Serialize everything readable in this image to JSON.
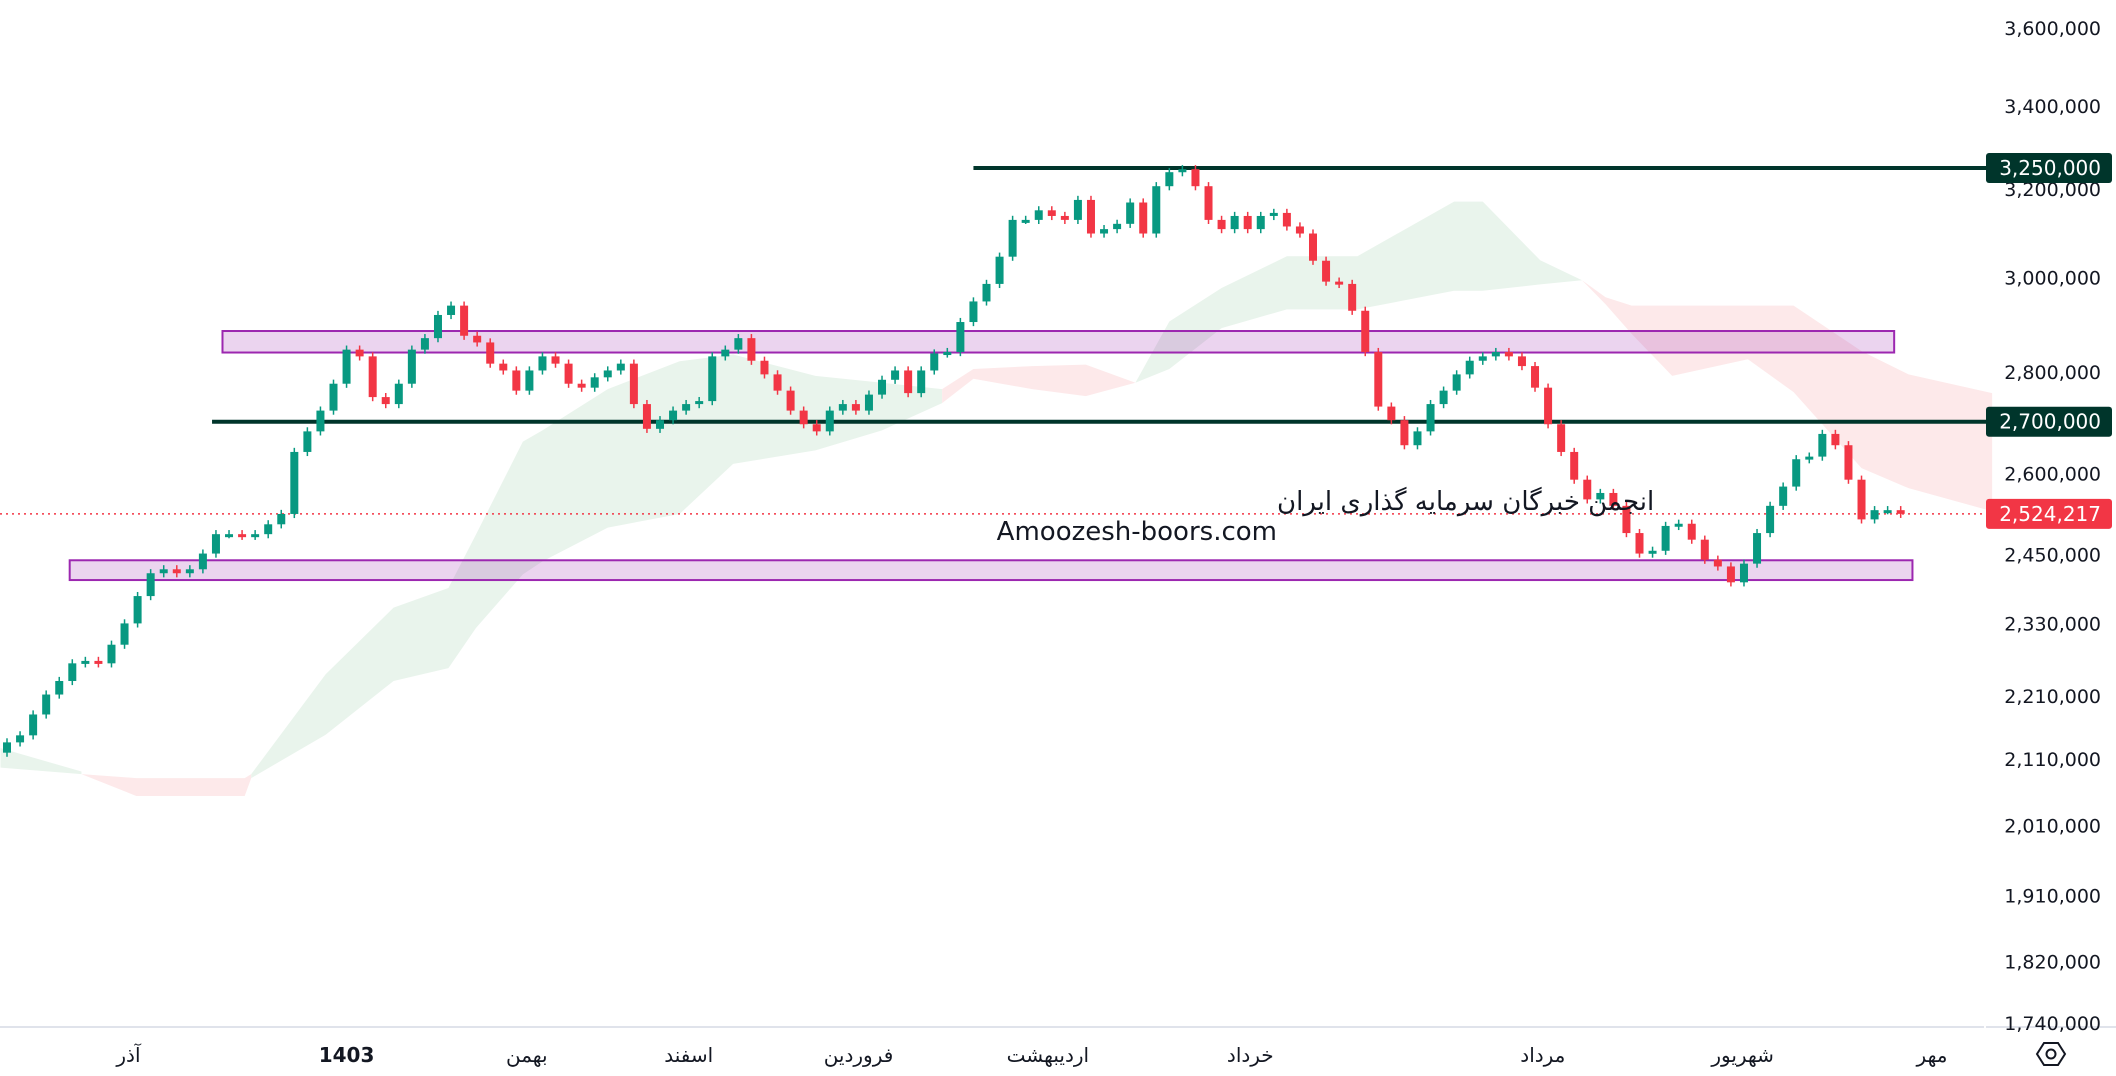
{
  "chart_data": {
    "type": "candlestick",
    "y_scale": "log",
    "ylim": [
      1740000,
      3600000
    ],
    "y_ticks": [
      "3,600,000",
      "3,400,000",
      "3,200,000",
      "3,000,000",
      "2,800,000",
      "2,600,000",
      "2,450,000",
      "2,330,000",
      "2,210,000",
      "2,110,000",
      "2,010,000",
      "1,910,000",
      "1,820,000",
      "1,740,000"
    ],
    "x_ticks": [
      {
        "label": "آذر",
        "at_bar": 9.3,
        "bold": false
      },
      {
        "label": "1403",
        "at_bar": 26,
        "bold": true
      },
      {
        "label": "بهمن",
        "at_bar": 39.8,
        "bold": false
      },
      {
        "label": "اسفند",
        "at_bar": 52.2,
        "bold": false
      },
      {
        "label": "فروردین",
        "at_bar": 65.2,
        "bold": false
      },
      {
        "label": "اردیبهشت",
        "at_bar": 79.7,
        "bold": false
      },
      {
        "label": "خرداد",
        "at_bar": 95.2,
        "bold": false
      },
      {
        "label": "مرداد",
        "at_bar": 117.6,
        "bold": false
      },
      {
        "label": "شهریور",
        "at_bar": 132.9,
        "bold": false
      },
      {
        "label": "مهر",
        "at_bar": 147.4,
        "bold": false
      }
    ],
    "first_open": 2120000,
    "closes": [
      2136000,
      2147000,
      2180000,
      2212000,
      2234000,
      2263000,
      2267000,
      2263000,
      2294000,
      2330000,
      2377000,
      2417000,
      2424000,
      2417000,
      2424000,
      2452000,
      2487000,
      2487000,
      2484000,
      2487000,
      2505000,
      2524000,
      2641000,
      2681000,
      2722000,
      2776000,
      2846000,
      2832000,
      2749000,
      2735000,
      2776000,
      2846000,
      2870000,
      2919000,
      2939000,
      2875000,
      2861000,
      2817000,
      2803000,
      2762000,
      2803000,
      2832000,
      2817000,
      2776000,
      2768000,
      2789000,
      2803000,
      2817000,
      2735000,
      2686000,
      2703000,
      2722000,
      2735000,
      2741000,
      2832000,
      2846000,
      2870000,
      2823000,
      2795000,
      2762000,
      2722000,
      2695000,
      2681000,
      2722000,
      2735000,
      2722000,
      2754000,
      2784000,
      2803000,
      2757000,
      2803000,
      2838000,
      2841000,
      2904000,
      2948000,
      2986000,
      3046000,
      3129000,
      3129000,
      3151000,
      3138000,
      3129000,
      3175000,
      3098000,
      3108000,
      3120000,
      3169000,
      3098000,
      3207000,
      3240000,
      3247000,
      3207000,
      3129000,
      3108000,
      3138000,
      3108000,
      3138000,
      3145000,
      3114000,
      3098000,
      3037000,
      2991000,
      2986000,
      2928000,
      2841000,
      2730000,
      2703000,
      2654000,
      2681000,
      2735000,
      2762000,
      2795000,
      2823000,
      2832000,
      2841000,
      2832000,
      2812000,
      2768000,
      2695000,
      2641000,
      2588000,
      2551000,
      2563000,
      2539000,
      2489000,
      2452000,
      2457000,
      2502000,
      2506000,
      2477000,
      2441000,
      2429000,
      2401000,
      2434000,
      2489000,
      2539000,
      2575000,
      2627000,
      2632000,
      2676000,
      2654000,
      2588000,
      2514000,
      2531000,
      2531000,
      2524217
    ],
    "cloud": [
      {
        "trend": "bull",
        "points": [
          [
            -0.5,
            2127000,
            2097000
          ],
          [
            5.7,
            2091000,
            2087000
          ]
        ]
      },
      {
        "trend": "bear",
        "points": [
          [
            5.7,
            2087000,
            2087000
          ],
          [
            9.9,
            2081000,
            2054000
          ],
          [
            18.2,
            2081000,
            2054000
          ],
          [
            18.7,
            2087000,
            2081000
          ]
        ]
      },
      {
        "trend": "bull",
        "points": [
          [
            18.7,
            2087000,
            2081000
          ],
          [
            24.4,
            2245000,
            2148000
          ],
          [
            29.6,
            2357000,
            2234000
          ],
          [
            33.8,
            2391000,
            2255000
          ],
          [
            35.9,
            2486000,
            2322000
          ],
          [
            39.5,
            2661000,
            2415000
          ],
          [
            41,
            2683000,
            2438000
          ],
          [
            46,
            2765000,
            2499000
          ],
          [
            51.5,
            2822000,
            2524000
          ],
          [
            55.6,
            2836000,
            2618000
          ],
          [
            61.9,
            2792000,
            2644000
          ],
          [
            67,
            2778000,
            2683000
          ],
          [
            71.6,
            2765000,
            2737000
          ]
        ]
      },
      {
        "trend": "bear",
        "points": [
          [
            71.6,
            2765000,
            2737000
          ],
          [
            74,
            2806000,
            2786000
          ],
          [
            78.5,
            2812000,
            2765000
          ],
          [
            82.6,
            2815000,
            2751000
          ],
          [
            86.4,
            2778000,
            2778000
          ]
        ]
      },
      {
        "trend": "bull",
        "points": [
          [
            86.4,
            2778000,
            2778000
          ],
          [
            89,
            2905000,
            2806000
          ],
          [
            93,
            2977000,
            2891000
          ],
          [
            98,
            3047000,
            2931000
          ],
          [
            103.4,
            3047000,
            2931000
          ],
          [
            110.8,
            3171000,
            2971000
          ],
          [
            113,
            3171000,
            2971000
          ],
          [
            117.4,
            3038000,
            2985000
          ],
          [
            120.6,
            2994000,
            2994000
          ]
        ]
      },
      {
        "trend": "bear",
        "points": [
          [
            120.6,
            2994000,
            2994000
          ],
          [
            122.4,
            2957000,
            2942000
          ],
          [
            124.4,
            2939000,
            2879000
          ],
          [
            127.5,
            2939000,
            2792000
          ],
          [
            133.3,
            2939000,
            2826000
          ],
          [
            136.8,
            2939000,
            2759000
          ],
          [
            142,
            2843000,
            2610000
          ],
          [
            145.6,
            2795000,
            2572000
          ],
          [
            152,
            2757000,
            2529000
          ]
        ]
      }
    ],
    "horizontal_lines": [
      {
        "price": 3250000,
        "label": "3,250,000",
        "from_bar": 74
      },
      {
        "price": 2700000,
        "label": "2,700,000",
        "from_bar": 15.7
      }
    ],
    "zones": [
      {
        "top": 2885000,
        "bottom": 2840000,
        "from_bar": 16.5,
        "to_bar": 144.5
      },
      {
        "top": 2440000,
        "bottom": 2405000,
        "from_bar": 4.8,
        "to_bar": 145.9
      }
    ],
    "last_price": {
      "value": 2524217,
      "label": "2,524,217"
    }
  },
  "colors": {
    "up": "#089981",
    "down": "#f23645",
    "line": "#00352b",
    "zone_border": "#9c27b0",
    "zone_fill": "#9c27b033",
    "cloud_bull": "#e9f4ec",
    "cloud_bear": "#fde9ea"
  },
  "watermark": {
    "line1": "انجمن خبرگان سرمایه گذاری ایران",
    "line2": "Amoozesh-boors.com"
  },
  "toolbar": {
    "settings_icon": "hexagon-settings-icon"
  }
}
